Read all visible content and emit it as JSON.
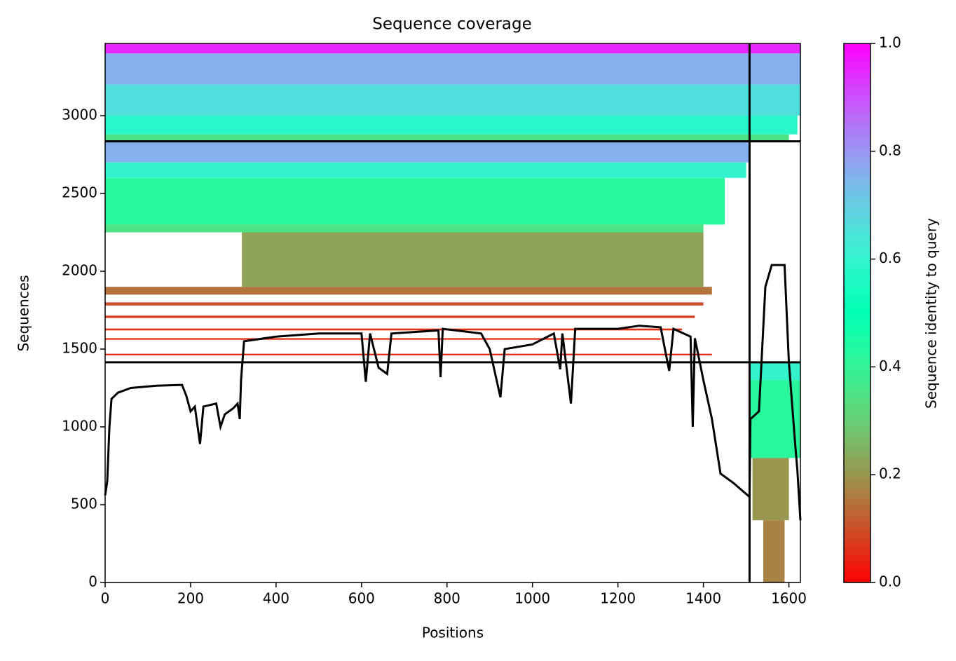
{
  "chart_data": {
    "type": "coverage",
    "title": "Sequence coverage",
    "xlabel": "Positions",
    "ylabel": "Sequences",
    "colorbar_label": "Sequence identity to query",
    "colormap": "rainbow_r",
    "xlim": [
      0,
      1627
    ],
    "ylim": [
      0,
      3464
    ],
    "clim": [
      0,
      1
    ],
    "xticks": [
      0,
      200,
      400,
      600,
      800,
      1000,
      1200,
      1400,
      1600
    ],
    "yticks": [
      0,
      500,
      1000,
      1500,
      2000,
      2500,
      3000
    ],
    "cticks": [
      {
        "value": 0,
        "label": "0.0"
      },
      {
        "value": 0.2,
        "label": "0.2"
      },
      {
        "value": 0.4,
        "label": "0.4"
      },
      {
        "value": 0.6,
        "label": "0.6"
      },
      {
        "value": 0.8,
        "label": "0.8"
      },
      {
        "value": 1,
        "label": "1.0"
      }
    ],
    "hlines": [
      1415,
      2835
    ],
    "vlines": [
      1508
    ],
    "line_color": "#000000",
    "blocks": [
      {
        "x": [
          0,
          1627
        ],
        "y": [
          3400,
          3464
        ],
        "identity": 0.95
      },
      {
        "x": [
          0,
          1627
        ],
        "y": [
          3200,
          3400
        ],
        "identity": 0.76
      },
      {
        "x": [
          0,
          1627
        ],
        "y": [
          3000,
          3200
        ],
        "identity": 0.66
      },
      {
        "x": [
          0,
          1620
        ],
        "y": [
          2880,
          3000
        ],
        "identity": 0.58
      },
      {
        "x": [
          0,
          1600
        ],
        "y": [
          2835,
          2880
        ],
        "identity": 0.35
      },
      {
        "x": [
          0,
          1508
        ],
        "y": [
          2700,
          2835
        ],
        "identity": 0.76
      },
      {
        "x": [
          0,
          1500
        ],
        "y": [
          2600,
          2700
        ],
        "identity": 0.6
      },
      {
        "x": [
          0,
          1450
        ],
        "y": [
          2300,
          2600
        ],
        "identity": 0.42
      },
      {
        "x": [
          0,
          1400
        ],
        "y": [
          2250,
          2300
        ],
        "identity": 0.35
      },
      {
        "x": [
          320,
          1400
        ],
        "y": [
          1900,
          2250
        ],
        "identity": 0.22
      },
      {
        "x": [
          0,
          1420
        ],
        "y": [
          1850,
          1900
        ],
        "identity": 0.15
      },
      {
        "x": [
          0,
          1400
        ],
        "y": [
          1780,
          1800
        ],
        "identity": 0.1
      },
      {
        "x": [
          0,
          1380
        ],
        "y": [
          1700,
          1715
        ],
        "identity": 0.08
      },
      {
        "x": [
          0,
          1350
        ],
        "y": [
          1620,
          1632
        ],
        "identity": 0.06
      },
      {
        "x": [
          0,
          1300
        ],
        "y": [
          1560,
          1570
        ],
        "identity": 0.05
      },
      {
        "x": [
          0,
          1420
        ],
        "y": [
          1460,
          1470
        ],
        "identity": 0.05
      },
      {
        "x": [
          1510,
          1627
        ],
        "y": [
          1300,
          1415
        ],
        "identity": 0.6
      },
      {
        "x": [
          1510,
          1627
        ],
        "y": [
          800,
          1300
        ],
        "identity": 0.42
      },
      {
        "x": [
          1515,
          1600
        ],
        "y": [
          400,
          800
        ],
        "identity": 0.2
      },
      {
        "x": [
          1540,
          1590
        ],
        "y": [
          0,
          400
        ],
        "identity": 0.17
      }
    ],
    "coverage": {
      "x": [
        0,
        5,
        10,
        15,
        30,
        60,
        120,
        180,
        190,
        200,
        210,
        222,
        230,
        260,
        270,
        280,
        300,
        310,
        315,
        318,
        325,
        400,
        500,
        600,
        610,
        620,
        640,
        660,
        670,
        780,
        785,
        790,
        880,
        900,
        925,
        935,
        1000,
        1050,
        1065,
        1070,
        1090,
        1100,
        1200,
        1250,
        1300,
        1320,
        1330,
        1370,
        1375,
        1380,
        1400,
        1420,
        1440,
        1470,
        1508,
        1510,
        1530,
        1545,
        1560,
        1590,
        1600,
        1615,
        1620,
        1627
      ],
      "y": [
        560,
        650,
        1000,
        1180,
        1220,
        1250,
        1265,
        1270,
        1200,
        1100,
        1130,
        890,
        1130,
        1150,
        1000,
        1080,
        1120,
        1150,
        1050,
        1300,
        1550,
        1580,
        1600,
        1600,
        1290,
        1600,
        1380,
        1340,
        1600,
        1620,
        1320,
        1630,
        1600,
        1500,
        1190,
        1500,
        1530,
        1600,
        1370,
        1600,
        1150,
        1630,
        1630,
        1650,
        1640,
        1360,
        1630,
        1580,
        1000,
        1570,
        1300,
        1050,
        700,
        640,
        550,
        1050,
        1100,
        1900,
        2040,
        2040,
        1420,
        880,
        720,
        400
      ]
    }
  }
}
